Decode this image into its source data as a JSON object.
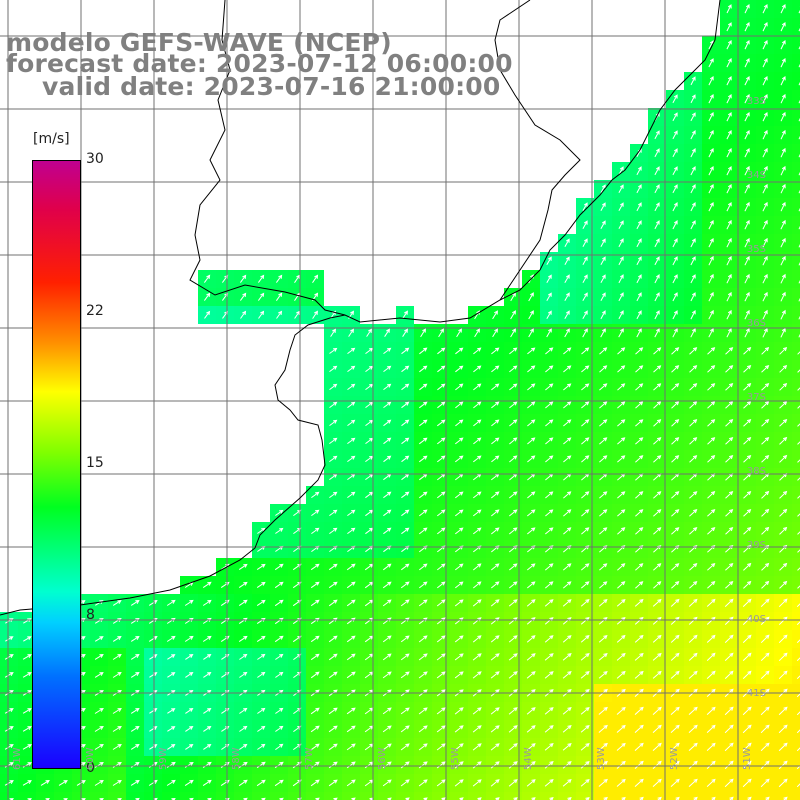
{
  "header": {
    "line1": "modelo GEFS-WAVE (NCEP)",
    "line2": "forecast date: 2023-07-12 06:00:00",
    "line3": "valid date: 2023-07-16 21:00:00"
  },
  "colorbar": {
    "unit": "[m/s]",
    "ticks": [
      "30",
      "22",
      "15",
      "8",
      "0"
    ],
    "tick_values": [
      30,
      22,
      15,
      8,
      0
    ]
  },
  "lat_labels": [
    "33S",
    "34S",
    "35S",
    "36S",
    "37S",
    "38S",
    "39S",
    "40S",
    "41S"
  ],
  "lon_labels": [
    "61W",
    "60W",
    "59W",
    "58W",
    "57W",
    "56W",
    "55W",
    "54W",
    "53W",
    "52W",
    "51W"
  ],
  "colors": {
    "land": "#ffffff",
    "grid": "#707070",
    "coast": "#000000",
    "arrow": "#ffffff",
    "text": "#808080"
  }
}
